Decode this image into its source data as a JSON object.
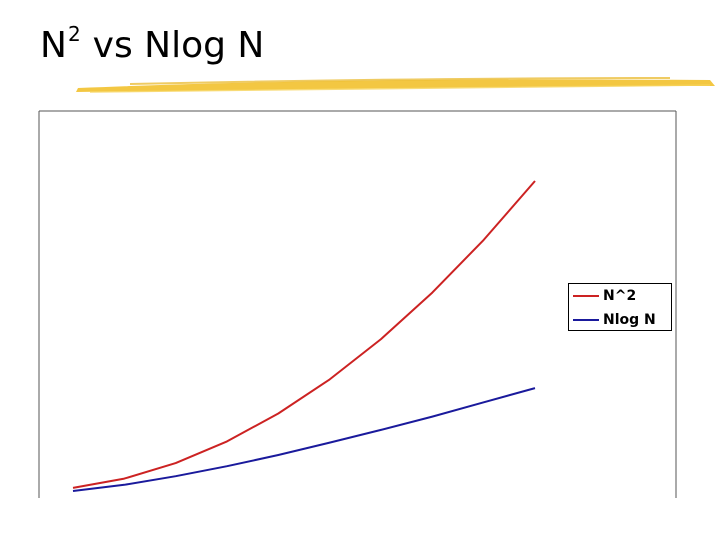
{
  "title": {
    "base": "N",
    "superscript": "2",
    "rest": "vs Nlog N"
  },
  "colors": {
    "accent_swoosh": "#f2c12e",
    "plot_border": "#555555",
    "series_n2": "#cc2222",
    "series_nlogn": "#1a1a9c"
  },
  "chart_data": {
    "type": "line",
    "title": "",
    "xlabel": "",
    "ylabel": "",
    "grid": false,
    "legend_position": "right",
    "x": [
      1,
      2,
      3,
      4,
      5,
      6,
      7,
      8,
      9,
      10
    ],
    "xlim": [
      1,
      10
    ],
    "ylim": [
      0,
      100
    ],
    "series": [
      {
        "name": "N^2",
        "values": [
          1,
          4,
          9,
          16,
          25,
          36,
          49,
          64,
          81,
          100
        ]
      },
      {
        "name": "Nlog N",
        "values": [
          0,
          2.0,
          4.77,
          8.0,
          11.6,
          15.6,
          19.7,
          24.0,
          28.6,
          33.2
        ]
      }
    ]
  }
}
